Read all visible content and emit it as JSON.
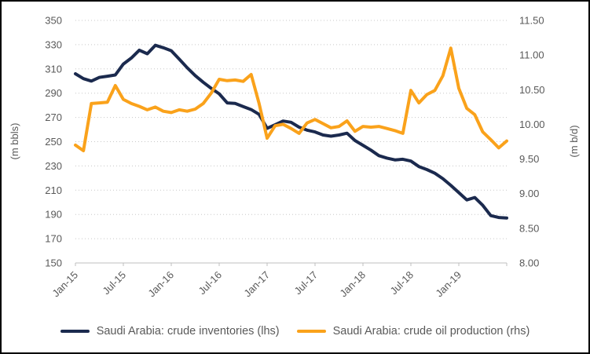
{
  "chart_data": {
    "type": "line",
    "title": "",
    "grid": "horizontal-dotted",
    "legend_position": "bottom",
    "x": [
      "Jan-15",
      "Feb-15",
      "Mar-15",
      "Apr-15",
      "May-15",
      "Jun-15",
      "Jul-15",
      "Aug-15",
      "Sep-15",
      "Oct-15",
      "Nov-15",
      "Dec-15",
      "Jan-16",
      "Feb-16",
      "Mar-16",
      "Apr-16",
      "May-16",
      "Jun-16",
      "Jul-16",
      "Aug-16",
      "Sep-16",
      "Oct-16",
      "Nov-16",
      "Dec-16",
      "Jan-17",
      "Feb-17",
      "Mar-17",
      "Apr-17",
      "May-17",
      "Jun-17",
      "Jul-17",
      "Aug-17",
      "Sep-17",
      "Oct-17",
      "Nov-17",
      "Dec-17",
      "Jan-18",
      "Feb-18",
      "Mar-18",
      "Apr-18",
      "May-18",
      "Jun-18",
      "Jul-18",
      "Aug-18",
      "Sep-18",
      "Oct-18",
      "Nov-18",
      "Dec-18",
      "Jan-19",
      "Feb-19",
      "Mar-19",
      "Apr-19",
      "May-19",
      "Jun-19",
      "Jul-19"
    ],
    "x_tick_labels": [
      "Jan-15",
      "Jul-15",
      "Jan-16",
      "Jul-16",
      "Jan-17",
      "Jul-17",
      "Jan-18",
      "Jul-18",
      "Jan-19"
    ],
    "left_axis": {
      "title": "(m bbls)",
      "min": 150,
      "max": 350,
      "step": 20,
      "tick_labels": [
        "350",
        "330",
        "310",
        "290",
        "270",
        "250",
        "230",
        "210",
        "190",
        "170",
        "150"
      ]
    },
    "right_axis": {
      "title": "(m b/d)",
      "min": 8.0,
      "max": 11.5,
      "step": 0.5,
      "tick_labels": [
        "11.50",
        "11.00",
        "10.50",
        "10.00",
        "9.50",
        "9.00",
        "8.50",
        "8.00"
      ]
    },
    "series": [
      {
        "name": "Saudi Arabia: crude inventories (lhs)",
        "axis": "left",
        "color": "#1b2a4e",
        "values": [
          306,
          302,
          300,
          303,
          304,
          305,
          314,
          319,
          325.5,
          322.5,
          329.5,
          327.5,
          325,
          318,
          311,
          304.5,
          299,
          294,
          289.5,
          282,
          281.5,
          279,
          276.5,
          272.5,
          261,
          264,
          267,
          266,
          262,
          259.5,
          258,
          255.5,
          254.5,
          255.5,
          257,
          251,
          247,
          243,
          238.5,
          236.5,
          235,
          235.5,
          234,
          229.5,
          227,
          224,
          219.5,
          214,
          208,
          202,
          204,
          197.5,
          189,
          187.5,
          187
        ]
      },
      {
        "name": "Saudi Arabia: crude oil production (rhs)",
        "axis": "right",
        "color": "#faa21b",
        "values": [
          9.7,
          9.62,
          10.3,
          10.31,
          10.32,
          10.56,
          10.36,
          10.3,
          10.26,
          10.21,
          10.25,
          10.19,
          10.17,
          10.21,
          10.19,
          10.22,
          10.3,
          10.45,
          10.65,
          10.63,
          10.64,
          10.62,
          10.72,
          10.3,
          9.8,
          9.98,
          10.0,
          9.94,
          9.87,
          10.02,
          10.07,
          10.01,
          9.95,
          9.97,
          10.05,
          9.9,
          9.97,
          9.96,
          9.97,
          9.94,
          9.91,
          9.87,
          10.49,
          10.31,
          10.43,
          10.49,
          10.7,
          11.1,
          10.52,
          10.23,
          10.14,
          9.89,
          9.78,
          9.66,
          9.76
        ]
      }
    ],
    "colors": {
      "axis_text": "#595959",
      "gridline": "#c7c7c7",
      "axis_line": "#bfbfbf",
      "background": "#ffffff",
      "frame_border": "#000000"
    }
  }
}
